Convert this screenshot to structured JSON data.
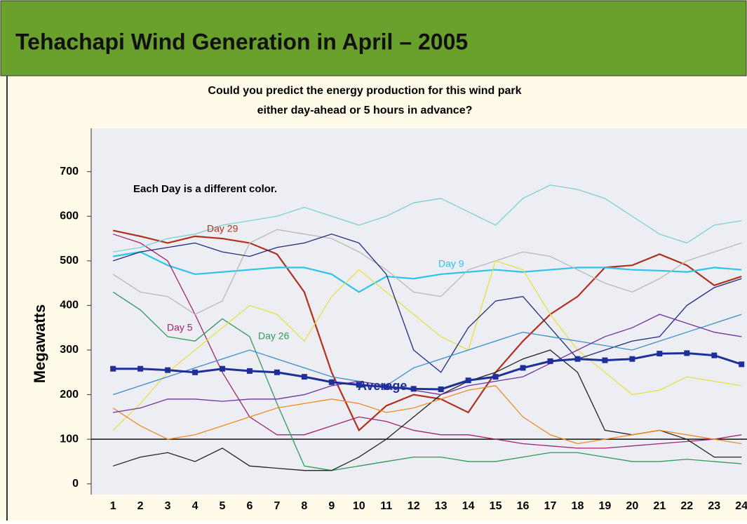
{
  "chart_data": {
    "type": "line",
    "title": "Tehachapi Wind Generation in April – 2005",
    "subtitle": [
      "Could you predict the energy production for this wind park",
      "either day-ahead or 5 hours in advance?"
    ],
    "y_label": "Megawatts",
    "note": "Each Day is a different color.",
    "x": [
      1,
      2,
      3,
      4,
      5,
      6,
      7,
      8,
      9,
      10,
      11,
      12,
      13,
      14,
      15,
      16,
      17,
      18,
      19,
      20,
      21,
      22,
      23,
      24
    ],
    "xlim": [
      0.2,
      24.2
    ],
    "ylim": [
      -24,
      797
    ],
    "yticks": [
      0,
      100,
      200,
      300,
      400,
      500,
      600,
      700
    ],
    "reference_line": 100,
    "series": [
      {
        "name": "Day 29",
        "color": "#b0301c",
        "values": [
          568,
          555,
          540,
          555,
          550,
          540,
          515,
          430,
          250,
          120,
          175,
          200,
          190,
          160,
          250,
          320,
          380,
          420,
          485,
          490,
          515,
          490,
          445,
          465
        ]
      },
      {
        "name": "Day 9",
        "color": "#2cc4e8",
        "values": [
          510,
          520,
          490,
          470,
          475,
          480,
          485,
          485,
          470,
          430,
          465,
          460,
          470,
          475,
          480,
          475,
          480,
          485,
          485,
          480,
          478,
          475,
          485,
          480
        ]
      },
      {
        "name": "Day 5",
        "color": "#a0246e",
        "values": [
          560,
          540,
          500,
          380,
          250,
          150,
          110,
          110,
          130,
          150,
          140,
          120,
          110,
          110,
          100,
          90,
          85,
          80,
          80,
          85,
          90,
          95,
          100,
          110
        ]
      },
      {
        "name": "Day 26",
        "color": "#2e9a5a",
        "values": [
          430,
          390,
          330,
          320,
          370,
          330,
          180,
          40,
          30,
          40,
          50,
          60,
          60,
          50,
          50,
          60,
          70,
          70,
          60,
          50,
          50,
          55,
          50,
          45
        ]
      },
      {
        "color": "#b8b8b8",
        "values": [
          470,
          430,
          420,
          380,
          410,
          540,
          570,
          560,
          550,
          520,
          480,
          430,
          420,
          480,
          500,
          520,
          510,
          480,
          450,
          430,
          460,
          500,
          520,
          540
        ]
      },
      {
        "color": "#e8e040",
        "values": [
          120,
          180,
          250,
          300,
          350,
          400,
          380,
          320,
          420,
          480,
          430,
          380,
          330,
          300,
          500,
          480,
          380,
          300,
          250,
          200,
          210,
          240,
          230,
          220
        ]
      },
      {
        "color": "#202a7a",
        "values": [
          500,
          520,
          530,
          540,
          520,
          510,
          530,
          540,
          560,
          540,
          470,
          300,
          250,
          350,
          410,
          420,
          350,
          280,
          300,
          320,
          330,
          400,
          440,
          460
        ]
      },
      {
        "color": "#222222",
        "values": [
          40,
          60,
          70,
          50,
          80,
          40,
          35,
          30,
          30,
          60,
          100,
          150,
          200,
          230,
          250,
          280,
          300,
          250,
          120,
          110,
          120,
          100,
          60,
          60
        ]
      },
      {
        "color": "#f08a20",
        "values": [
          170,
          130,
          100,
          110,
          130,
          150,
          170,
          180,
          190,
          180,
          160,
          170,
          190,
          210,
          220,
          150,
          110,
          90,
          100,
          110,
          120,
          110,
          100,
          90
        ]
      },
      {
        "color": "#3a8ec8",
        "values": [
          200,
          220,
          240,
          260,
          280,
          300,
          280,
          260,
          240,
          230,
          220,
          260,
          280,
          300,
          320,
          340,
          330,
          320,
          310,
          300,
          320,
          340,
          360,
          380
        ]
      },
      {
        "color": "#7ad0d0",
        "values": [
          520,
          530,
          550,
          560,
          580,
          590,
          600,
          620,
          600,
          580,
          600,
          630,
          640,
          610,
          580,
          640,
          670,
          660,
          640,
          600,
          560,
          540,
          580,
          590
        ]
      },
      {
        "color": "#7030a0",
        "values": [
          160,
          170,
          190,
          190,
          185,
          190,
          190,
          200,
          220,
          230,
          220,
          210,
          200,
          220,
          230,
          240,
          270,
          300,
          330,
          350,
          380,
          360,
          340,
          330
        ]
      }
    ],
    "annotations": [
      "Day 29",
      "Day 9",
      "Day 5",
      "Day 26",
      "Average"
    ],
    "average": {
      "name": "Average",
      "color": "#1e2f9a",
      "values": [
        258,
        258,
        255,
        250,
        258,
        253,
        250,
        240,
        228,
        222,
        217,
        213,
        212,
        232,
        240,
        260,
        275,
        280,
        277,
        280,
        292,
        293,
        288,
        268
      ]
    }
  }
}
